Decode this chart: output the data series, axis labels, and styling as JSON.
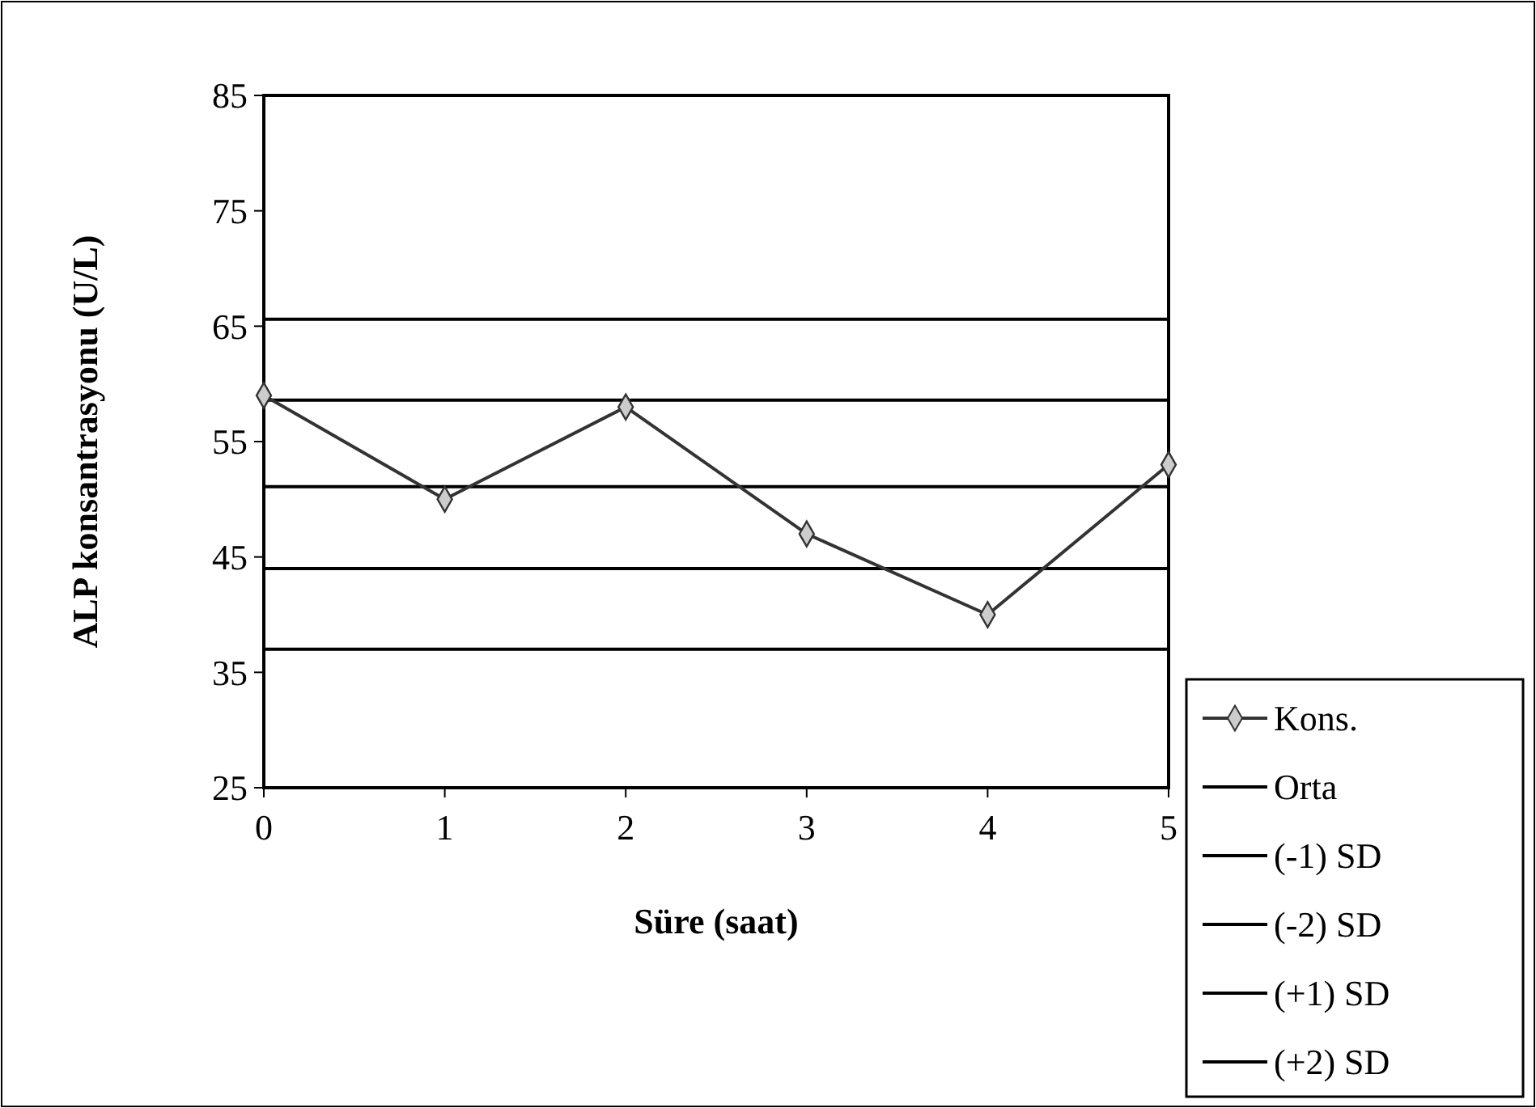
{
  "chart_data": {
    "type": "line",
    "xlabel": "Süre (saat)",
    "ylabel": "ALP konsantrasyonu (U/L)",
    "x": [
      0,
      1,
      2,
      3,
      4,
      5
    ],
    "xlim": [
      0,
      5
    ],
    "xticks": [
      0,
      1,
      2,
      3,
      4,
      5
    ],
    "ylim": [
      25,
      85
    ],
    "yticks": [
      25,
      35,
      45,
      55,
      65,
      75,
      85
    ],
    "grid": false,
    "legend": "bottom right",
    "series": [
      {
        "name": "Kons.",
        "color": "#333333",
        "marker": "diamond",
        "values": [
          59,
          50,
          58,
          47,
          40,
          53
        ]
      },
      {
        "name": "Orta",
        "color": "#000000",
        "marker": "none",
        "values": [
          51.1,
          51.1,
          51.1,
          51.1,
          51.1,
          51.1
        ]
      },
      {
        "name": "(-1) SD",
        "color": "#000000",
        "marker": "none",
        "values": [
          44,
          44,
          44,
          44,
          44,
          44
        ]
      },
      {
        "name": "(-2) SD",
        "color": "#000000",
        "marker": "none",
        "values": [
          37,
          37,
          37,
          37,
          37,
          37
        ]
      },
      {
        "name": "(+1) SD",
        "color": "#000000",
        "marker": "none",
        "values": [
          58.6,
          58.6,
          58.6,
          58.6,
          58.6,
          58.6
        ]
      },
      {
        "name": "(+2) SD",
        "color": "#000000",
        "marker": "none",
        "values": [
          65.6,
          65.6,
          65.6,
          65.6,
          65.6,
          65.6
        ]
      }
    ]
  }
}
